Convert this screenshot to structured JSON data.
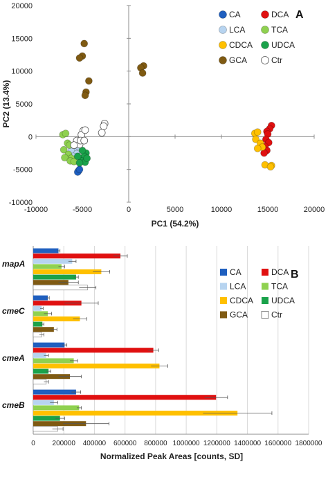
{
  "colors": {
    "CA": "#1f5fbf",
    "DCA": "#e01010",
    "LCA": "#b7d4f0",
    "TCA": "#8fd150",
    "CDCA": "#ffc000",
    "UDCA": "#1aa24a",
    "GCA": "#7f5a12",
    "Ctr": "#ffffff"
  },
  "chart_data": [
    {
      "type": "scatter",
      "panel_label": "A",
      "xlabel": "PC1 (54.2%)",
      "ylabel": "PC2 (13.4%)",
      "xlim": [
        -10000,
        20000
      ],
      "ylim": [
        -10000,
        20000
      ],
      "xticks": [
        "-10000",
        "-5000",
        "0",
        "5000",
        "10000",
        "15000",
        "20000"
      ],
      "yticks": [
        "-10000",
        "-5000",
        "0",
        "5000",
        "10000",
        "15000",
        "20000"
      ],
      "grid": false,
      "legend_position": "top-right",
      "series": [
        {
          "name": "CA",
          "points": [
            [
              -5400,
              -5200
            ],
            [
              -5500,
              -5400
            ],
            [
              -5300,
              -5000
            ]
          ]
        },
        {
          "name": "DCA",
          "points": [
            [
              15400,
              1700
            ],
            [
              15200,
              1200
            ],
            [
              14900,
              800
            ],
            [
              15000,
              400
            ],
            [
              14800,
              -400
            ],
            [
              15100,
              -900
            ],
            [
              14700,
              -1500
            ],
            [
              14900,
              -2100
            ],
            [
              14600,
              -2500
            ]
          ]
        },
        {
          "name": "LCA",
          "points": [
            [
              -5800,
              -1800
            ],
            [
              -6200,
              -2200
            ],
            [
              -5600,
              -2600
            ],
            [
              -5400,
              -1500
            ],
            [
              -6000,
              -3000
            ]
          ]
        },
        {
          "name": "TCA",
          "points": [
            [
              -7100,
              300
            ],
            [
              -6800,
              500
            ],
            [
              -6600,
              -1000
            ],
            [
              -7000,
              -2000
            ],
            [
              -6500,
              -2700
            ],
            [
              -6200,
              -3300
            ],
            [
              -6900,
              -3200
            ],
            [
              -6300,
              -3700
            ],
            [
              -5900,
              -3800
            ],
            [
              -6400,
              -1300
            ]
          ]
        },
        {
          "name": "CDCA",
          "points": [
            [
              13600,
              500
            ],
            [
              13900,
              700
            ],
            [
              13700,
              -400
            ],
            [
              14200,
              -1000
            ],
            [
              14400,
              -1600
            ],
            [
              13900,
              -1800
            ],
            [
              14700,
              -4300
            ],
            [
              15400,
              -4400
            ],
            [
              15300,
              -4600
            ]
          ]
        },
        {
          "name": "UDCA",
          "points": [
            [
              -4600,
              -2500
            ],
            [
              -4800,
              -3000
            ],
            [
              -5100,
              -3700
            ],
            [
              -4700,
              -3900
            ],
            [
              -5300,
              -4000
            ],
            [
              -5000,
              -2100
            ],
            [
              -5500,
              -3000
            ],
            [
              -4500,
              -3300
            ]
          ]
        },
        {
          "name": "GCA",
          "points": [
            [
              -4800,
              14200
            ],
            [
              -5000,
              12300
            ],
            [
              -5300,
              12000
            ],
            [
              -4300,
              8500
            ],
            [
              -4600,
              6800
            ],
            [
              -4700,
              6300
            ],
            [
              1600,
              10800
            ],
            [
              1300,
              10500
            ],
            [
              1500,
              9700
            ]
          ]
        },
        {
          "name": "Ctr",
          "points": [
            [
              -4900,
              900
            ],
            [
              -5100,
              300
            ],
            [
              -4700,
              1000
            ],
            [
              -2600,
              2000
            ],
            [
              -2700,
              1600
            ],
            [
              -2900,
              600
            ],
            [
              -5600,
              -600
            ],
            [
              -5300,
              -1200
            ],
            [
              -5200,
              -600
            ],
            [
              -4800,
              -600
            ],
            [
              -5900,
              -1300
            ]
          ]
        }
      ]
    },
    {
      "type": "bar",
      "orientation": "horizontal",
      "panel_label": "B",
      "xlabel": "Normalized Peak Areas [counts, SD]",
      "xlim": [
        0,
        1800000
      ],
      "xticks": [
        "0",
        "200000",
        "400000",
        "600000",
        "800000",
        "1000000",
        "1200000",
        "1400000",
        "1600000",
        "1800000"
      ],
      "grid": true,
      "legend_position": "top-right",
      "categories": [
        "mapA",
        "cmeC",
        "cmeA",
        "cmeB"
      ],
      "series": [
        {
          "name": "CA",
          "values": [
            165000,
            95000,
            205000,
            280000
          ],
          "errors": [
            10000,
            10000,
            15000,
            30000
          ]
        },
        {
          "name": "DCA",
          "values": [
            570000,
            315000,
            785000,
            1195000
          ],
          "errors": [
            45000,
            110000,
            35000,
            75000
          ]
        },
        {
          "name": "LCA",
          "values": [
            255000,
            55000,
            85000,
            135000
          ],
          "errors": [
            25000,
            10000,
            15000,
            25000
          ]
        },
        {
          "name": "TCA",
          "values": [
            185000,
            95000,
            265000,
            300000
          ],
          "errors": [
            20000,
            25000,
            25000,
            15000
          ]
        },
        {
          "name": "CDCA",
          "values": [
            445000,
            305000,
            825000,
            1335000
          ],
          "errors": [
            55000,
            45000,
            55000,
            225000
          ]
        },
        {
          "name": "UDCA",
          "values": [
            280000,
            60000,
            100000,
            175000
          ],
          "errors": [
            15000,
            10000,
            15000,
            30000
          ]
        },
        {
          "name": "GCA",
          "values": [
            230000,
            135000,
            240000,
            345000
          ],
          "errors": [
            65000,
            20000,
            75000,
            150000
          ]
        },
        {
          "name": "Ctr",
          "values": [
            355000,
            55000,
            85000,
            160000
          ],
          "errors": [
            55000,
            15000,
            15000,
            35000
          ]
        }
      ]
    }
  ]
}
